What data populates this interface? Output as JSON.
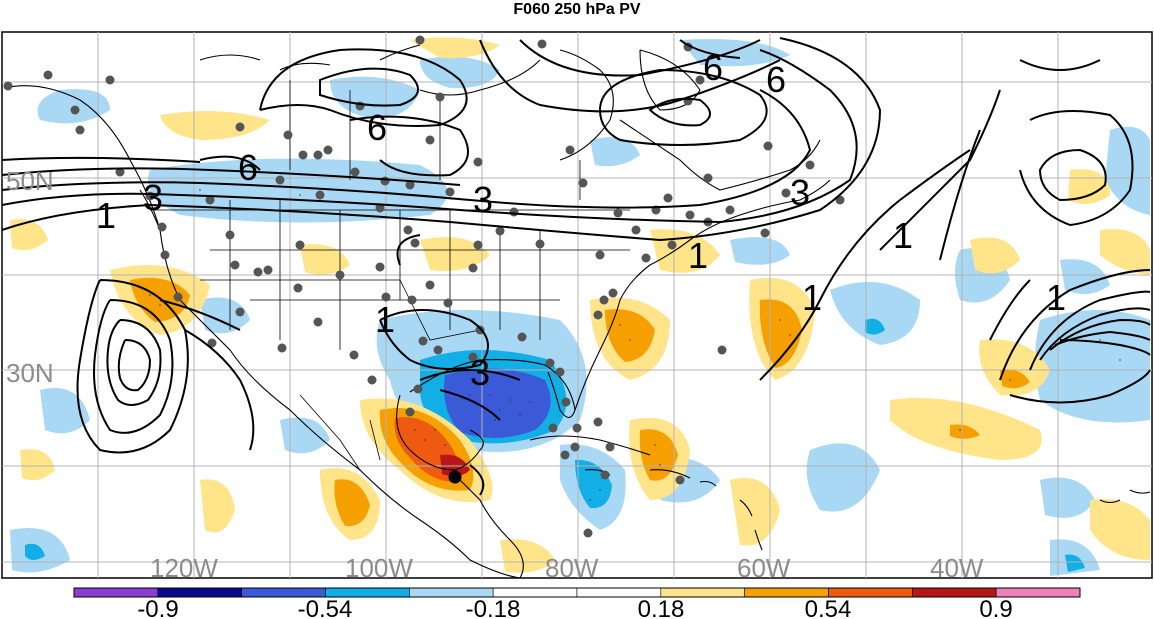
{
  "title": "F060 250 hPa PV",
  "grid_labels": {
    "lat": [
      "50N",
      "30N"
    ],
    "lon": [
      "120W",
      "100W",
      "80W",
      "60W",
      "40W"
    ]
  },
  "contour_labels": [
    "6",
    "6",
    "6",
    "6",
    "3",
    "3",
    "3",
    "1",
    "1",
    "1",
    "1",
    "1",
    "1",
    "3"
  ],
  "colorbar": {
    "ticks": [
      "-0.9",
      "-0.54",
      "-0.18",
      "0.18",
      "0.54",
      "0.9"
    ],
    "colors": [
      "#8a3fd1",
      "#0a0a8c",
      "#3a5ad8",
      "#12aee6",
      "#a9d8f5",
      "#ffffff",
      "#ffffff",
      "#ffe48a",
      "#f5a000",
      "#ef5a12",
      "#b81616",
      "#f081b8"
    ]
  }
}
